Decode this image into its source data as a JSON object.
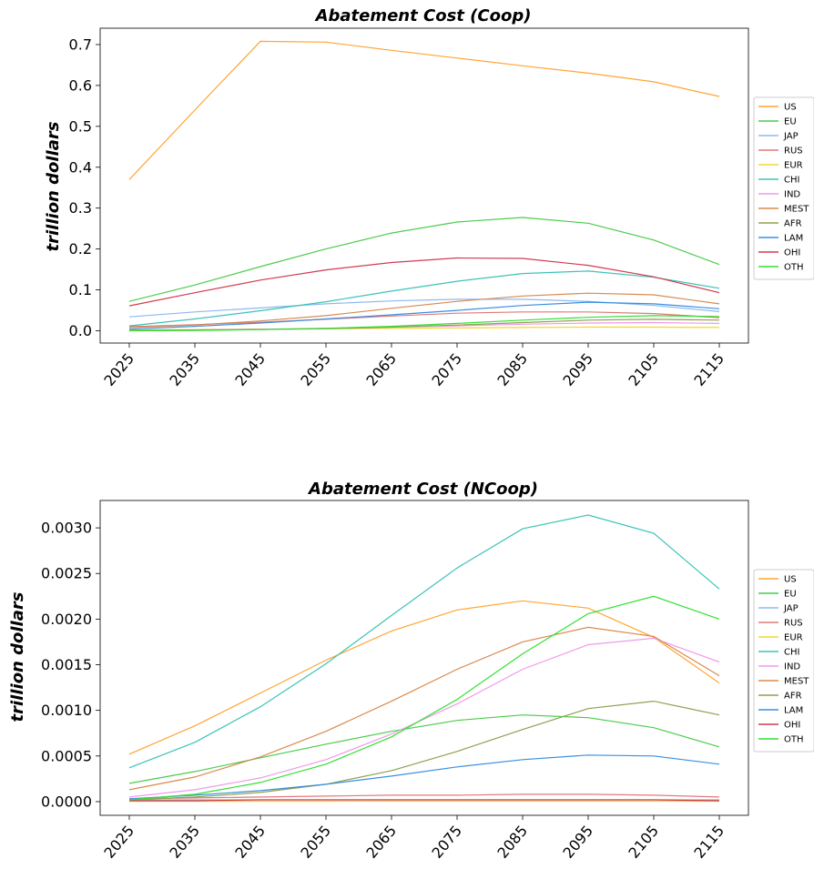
{
  "chart_data": [
    {
      "type": "line",
      "title": "Abatement Cost (Coop)",
      "xlabel": "",
      "ylabel": "trillion dollars",
      "x": [
        2025,
        2035,
        2045,
        2055,
        2065,
        2075,
        2085,
        2095,
        2105,
        2115
      ],
      "xticks": [
        "2025",
        "2035",
        "2045",
        "2055",
        "2065",
        "2075",
        "2085",
        "2095",
        "2105",
        "2115"
      ],
      "ylim": [
        -0.03,
        0.74
      ],
      "yticks": [
        0.0,
        0.1,
        0.2,
        0.3,
        0.4,
        0.5,
        0.6,
        0.7
      ],
      "ytick_labels": [
        "0.0",
        "0.1",
        "0.2",
        "0.3",
        "0.4",
        "0.5",
        "0.6",
        "0.7"
      ],
      "legend_position": "right",
      "grid": false,
      "series": [
        {
          "name": "US",
          "color": "#ffa533",
          "values": [
            0.37,
            0.54,
            0.708,
            0.706,
            0.686,
            0.667,
            0.648,
            0.63,
            0.609,
            0.573
          ]
        },
        {
          "name": "EU",
          "color": "#4ccc4c",
          "values": [
            0.072,
            0.112,
            0.157,
            0.2,
            0.239,
            0.266,
            0.277,
            0.263,
            0.222,
            0.162
          ]
        },
        {
          "name": "JAP",
          "color": "#8fb8f0",
          "values": [
            0.034,
            0.046,
            0.056,
            0.066,
            0.073,
            0.077,
            0.077,
            0.072,
            0.062,
            0.047
          ]
        },
        {
          "name": "RUS",
          "color": "#e07a7a",
          "values": [
            0.01,
            0.015,
            0.021,
            0.028,
            0.036,
            0.043,
            0.046,
            0.046,
            0.042,
            0.032
          ]
        },
        {
          "name": "EUR",
          "color": "#f0d830",
          "values": [
            0.002,
            0.003,
            0.004,
            0.005,
            0.006,
            0.007,
            0.008,
            0.009,
            0.009,
            0.008
          ]
        },
        {
          "name": "CHI",
          "color": "#3cc3b8",
          "values": [
            0.012,
            0.029,
            0.049,
            0.071,
            0.097,
            0.121,
            0.14,
            0.146,
            0.131,
            0.104
          ]
        },
        {
          "name": "IND",
          "color": "#f09ae8",
          "values": [
            0.001,
            0.002,
            0.004,
            0.006,
            0.009,
            0.012,
            0.016,
            0.019,
            0.02,
            0.018
          ]
        },
        {
          "name": "MEST",
          "color": "#d98a4e",
          "values": [
            0.008,
            0.014,
            0.024,
            0.037,
            0.055,
            0.072,
            0.085,
            0.092,
            0.088,
            0.066
          ]
        },
        {
          "name": "AFR",
          "color": "#8fa050",
          "values": [
            0.001,
            0.002,
            0.003,
            0.005,
            0.009,
            0.014,
            0.02,
            0.026,
            0.028,
            0.026
          ]
        },
        {
          "name": "LAM",
          "color": "#3a8fe0",
          "values": [
            0.004,
            0.011,
            0.019,
            0.029,
            0.039,
            0.05,
            0.062,
            0.07,
            0.066,
            0.054
          ]
        },
        {
          "name": "OHI",
          "color": "#d03c50",
          "values": [
            0.061,
            0.093,
            0.124,
            0.149,
            0.167,
            0.178,
            0.177,
            0.16,
            0.132,
            0.093
          ]
        },
        {
          "name": "OTH",
          "color": "#33e033",
          "values": [
            0.0,
            0.001,
            0.003,
            0.006,
            0.011,
            0.018,
            0.026,
            0.033,
            0.037,
            0.035
          ]
        }
      ]
    },
    {
      "type": "line",
      "title": "Abatement Cost (NCoop)",
      "xlabel": "",
      "ylabel": "trillion dollars",
      "x": [
        2025,
        2035,
        2045,
        2055,
        2065,
        2075,
        2085,
        2095,
        2105,
        2115
      ],
      "xticks": [
        "2025",
        "2035",
        "2045",
        "2055",
        "2065",
        "2075",
        "2085",
        "2095",
        "2105",
        "2115"
      ],
      "ylim": [
        -0.00015,
        0.0033
      ],
      "yticks": [
        0.0,
        0.0005,
        0.001,
        0.0015,
        0.002,
        0.0025,
        0.003
      ],
      "ytick_labels": [
        "0.0000",
        "0.0005",
        "0.0010",
        "0.0015",
        "0.0020",
        "0.0025",
        "0.0030"
      ],
      "legend_position": "right",
      "grid": false,
      "series": [
        {
          "name": "US",
          "color": "#ffa533",
          "values": [
            0.00052,
            0.00083,
            0.00119,
            0.00155,
            0.00187,
            0.0021,
            0.0022,
            0.00212,
            0.0018,
            0.0013
          ]
        },
        {
          "name": "EU",
          "color": "#4ccc4c",
          "values": [
            0.0002,
            0.00033,
            0.00048,
            0.00063,
            0.00077,
            0.00089,
            0.00095,
            0.00092,
            0.00081,
            0.0006
          ]
        },
        {
          "name": "JAP",
          "color": "#8fb8f0",
          "values": [
            2e-05,
            2e-05,
            2e-05,
            2e-05,
            2e-05,
            2e-05,
            2e-05,
            2e-05,
            2e-05,
            2e-05
          ]
        },
        {
          "name": "RUS",
          "color": "#e07a7a",
          "values": [
            3e-05,
            4e-05,
            5e-05,
            6e-05,
            7e-05,
            7e-05,
            8e-05,
            8e-05,
            7e-05,
            5e-05
          ]
        },
        {
          "name": "EUR",
          "color": "#f0d830",
          "values": [
            3e-06,
            3e-06,
            4e-06,
            4e-06,
            5e-06,
            5e-06,
            5e-06,
            5e-06,
            5e-06,
            4e-06
          ]
        },
        {
          "name": "CHI",
          "color": "#3cc3b8",
          "values": [
            0.00037,
            0.00065,
            0.00104,
            0.00151,
            0.00204,
            0.00256,
            0.00299,
            0.00314,
            0.00294,
            0.00233
          ]
        },
        {
          "name": "IND",
          "color": "#f09ae8",
          "values": [
            5e-05,
            0.00013,
            0.00026,
            0.00046,
            0.00074,
            0.00107,
            0.00145,
            0.00172,
            0.00179,
            0.00153
          ]
        },
        {
          "name": "MEST",
          "color": "#d98a4e",
          "values": [
            0.00013,
            0.00027,
            0.00049,
            0.00077,
            0.0011,
            0.00145,
            0.00175,
            0.00191,
            0.00181,
            0.00138
          ]
        },
        {
          "name": "AFR",
          "color": "#8fa050",
          "values": [
            2e-05,
            5e-05,
            0.0001,
            0.00019,
            0.00034,
            0.00055,
            0.00079,
            0.00102,
            0.0011,
            0.00095
          ]
        },
        {
          "name": "LAM",
          "color": "#3a8fe0",
          "values": [
            3e-05,
            7e-05,
            0.00012,
            0.00019,
            0.00028,
            0.00038,
            0.00046,
            0.00051,
            0.0005,
            0.00041
          ]
        },
        {
          "name": "OHI",
          "color": "#d03c50",
          "values": [
            1e-05,
            1e-05,
            2e-05,
            2e-05,
            2e-05,
            2e-05,
            2e-05,
            2e-05,
            2e-05,
            1e-05
          ]
        },
        {
          "name": "OTH",
          "color": "#33e033",
          "values": [
            2e-05,
            8e-05,
            0.00021,
            0.00041,
            0.00071,
            0.00112,
            0.00162,
            0.00206,
            0.00225,
            0.002
          ]
        }
      ]
    }
  ]
}
